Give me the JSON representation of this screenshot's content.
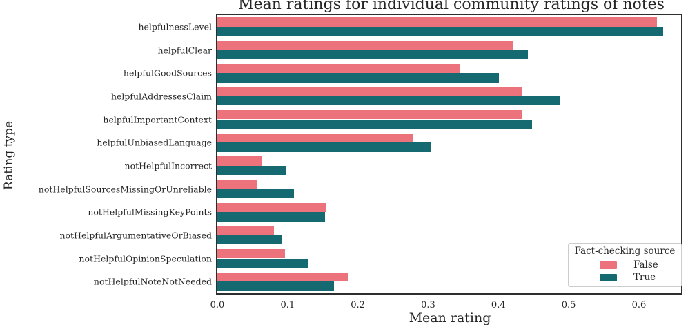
{
  "chart_data": {
    "type": "bar",
    "orientation": "horizontal",
    "title": "Mean ratings for individual community ratings of notes",
    "xlabel": "Mean rating",
    "ylabel": "Rating type",
    "xlim": [
      0,
      0.66
    ],
    "xticks": [
      0.0,
      0.1,
      0.2,
      0.3,
      0.4,
      0.5,
      0.6
    ],
    "xtick_labels": [
      "0.0",
      "0.1",
      "0.2",
      "0.3",
      "0.4",
      "0.5",
      "0.6"
    ],
    "grid": false,
    "categories": [
      "helpfulnessLevel",
      "helpfulClear",
      "helpfulGoodSources",
      "helpfulAddressesClaim",
      "helpfulImportantContext",
      "helpfulUnbiasedLanguage",
      "notHelpfulIncorrect",
      "notHelpfulSourcesMissingOrUnreliable",
      "notHelpfulMissingKeyPoints",
      "notHelpfulArgumentativeOrBiased",
      "notHelpfulOpinionSpeculation",
      "notHelpfulNoteNotNeeded"
    ],
    "series": [
      {
        "name": "False",
        "color": "#ec737c",
        "values": [
          0.626,
          0.421,
          0.345,
          0.434,
          0.434,
          0.278,
          0.064,
          0.057,
          0.155,
          0.081,
          0.096,
          0.187
        ]
      },
      {
        "name": "True",
        "color": "#156a72",
        "values": [
          0.634,
          0.442,
          0.401,
          0.487,
          0.448,
          0.303,
          0.098,
          0.109,
          0.153,
          0.092,
          0.13,
          0.166
        ]
      }
    ],
    "legend": {
      "title": "Fact-checking source",
      "position": "lower right"
    }
  },
  "colors": {
    "spine": "#2e2e2e",
    "text": "#262626",
    "legend_border": "#cccccc",
    "background": "#ffffff",
    "series_false": "#ec737c",
    "series_true": "#156a72"
  }
}
